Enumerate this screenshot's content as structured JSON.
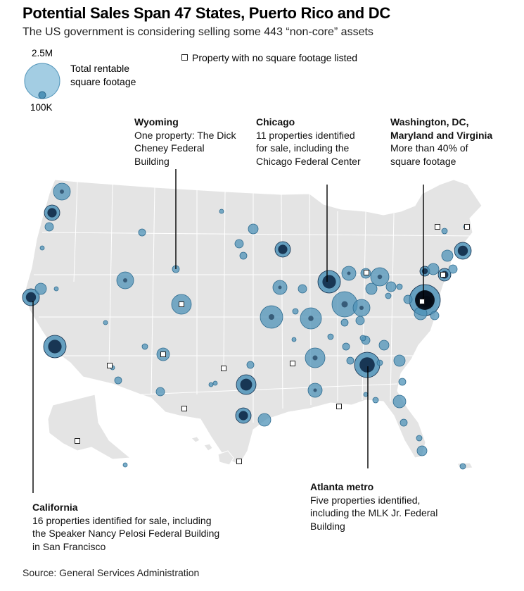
{
  "title": "Potential Sales Span 47 States, Puerto Rico and DC",
  "subtitle": "The US government is considering selling some 443 “non-core” assets",
  "legend": {
    "max_label": "2.5M",
    "min_label": "100K",
    "size_label": "Total rentable square footage",
    "square_label": "Property with no square footage listed"
  },
  "colors": {
    "land": "#e4e4e4",
    "bubble": "#4f93b8",
    "bubble_dark": "#0f2a48",
    "bubble_light": "#8cc1dc"
  },
  "annotations": {
    "wyoming": {
      "head": "Wyoming",
      "body": "One property: The Dick Cheney Federal Building"
    },
    "chicago": {
      "head": "Chicago",
      "body": "11 properties identified for sale, including the Chicago Federal Center"
    },
    "dc": {
      "head": "Washington, DC, Maryland and Virginia",
      "body": "More than 40% of square footage"
    },
    "atlanta": {
      "head": "Atlanta metro",
      "body": "Five properties identified, including the MLK Jr. Federal Building"
    },
    "california": {
      "head": "California",
      "body": "16 properties identified for sale, including the Speaker Nancy Pelosi Federal Building in San Francisco"
    }
  },
  "source": "Source: General Services Administration"
}
